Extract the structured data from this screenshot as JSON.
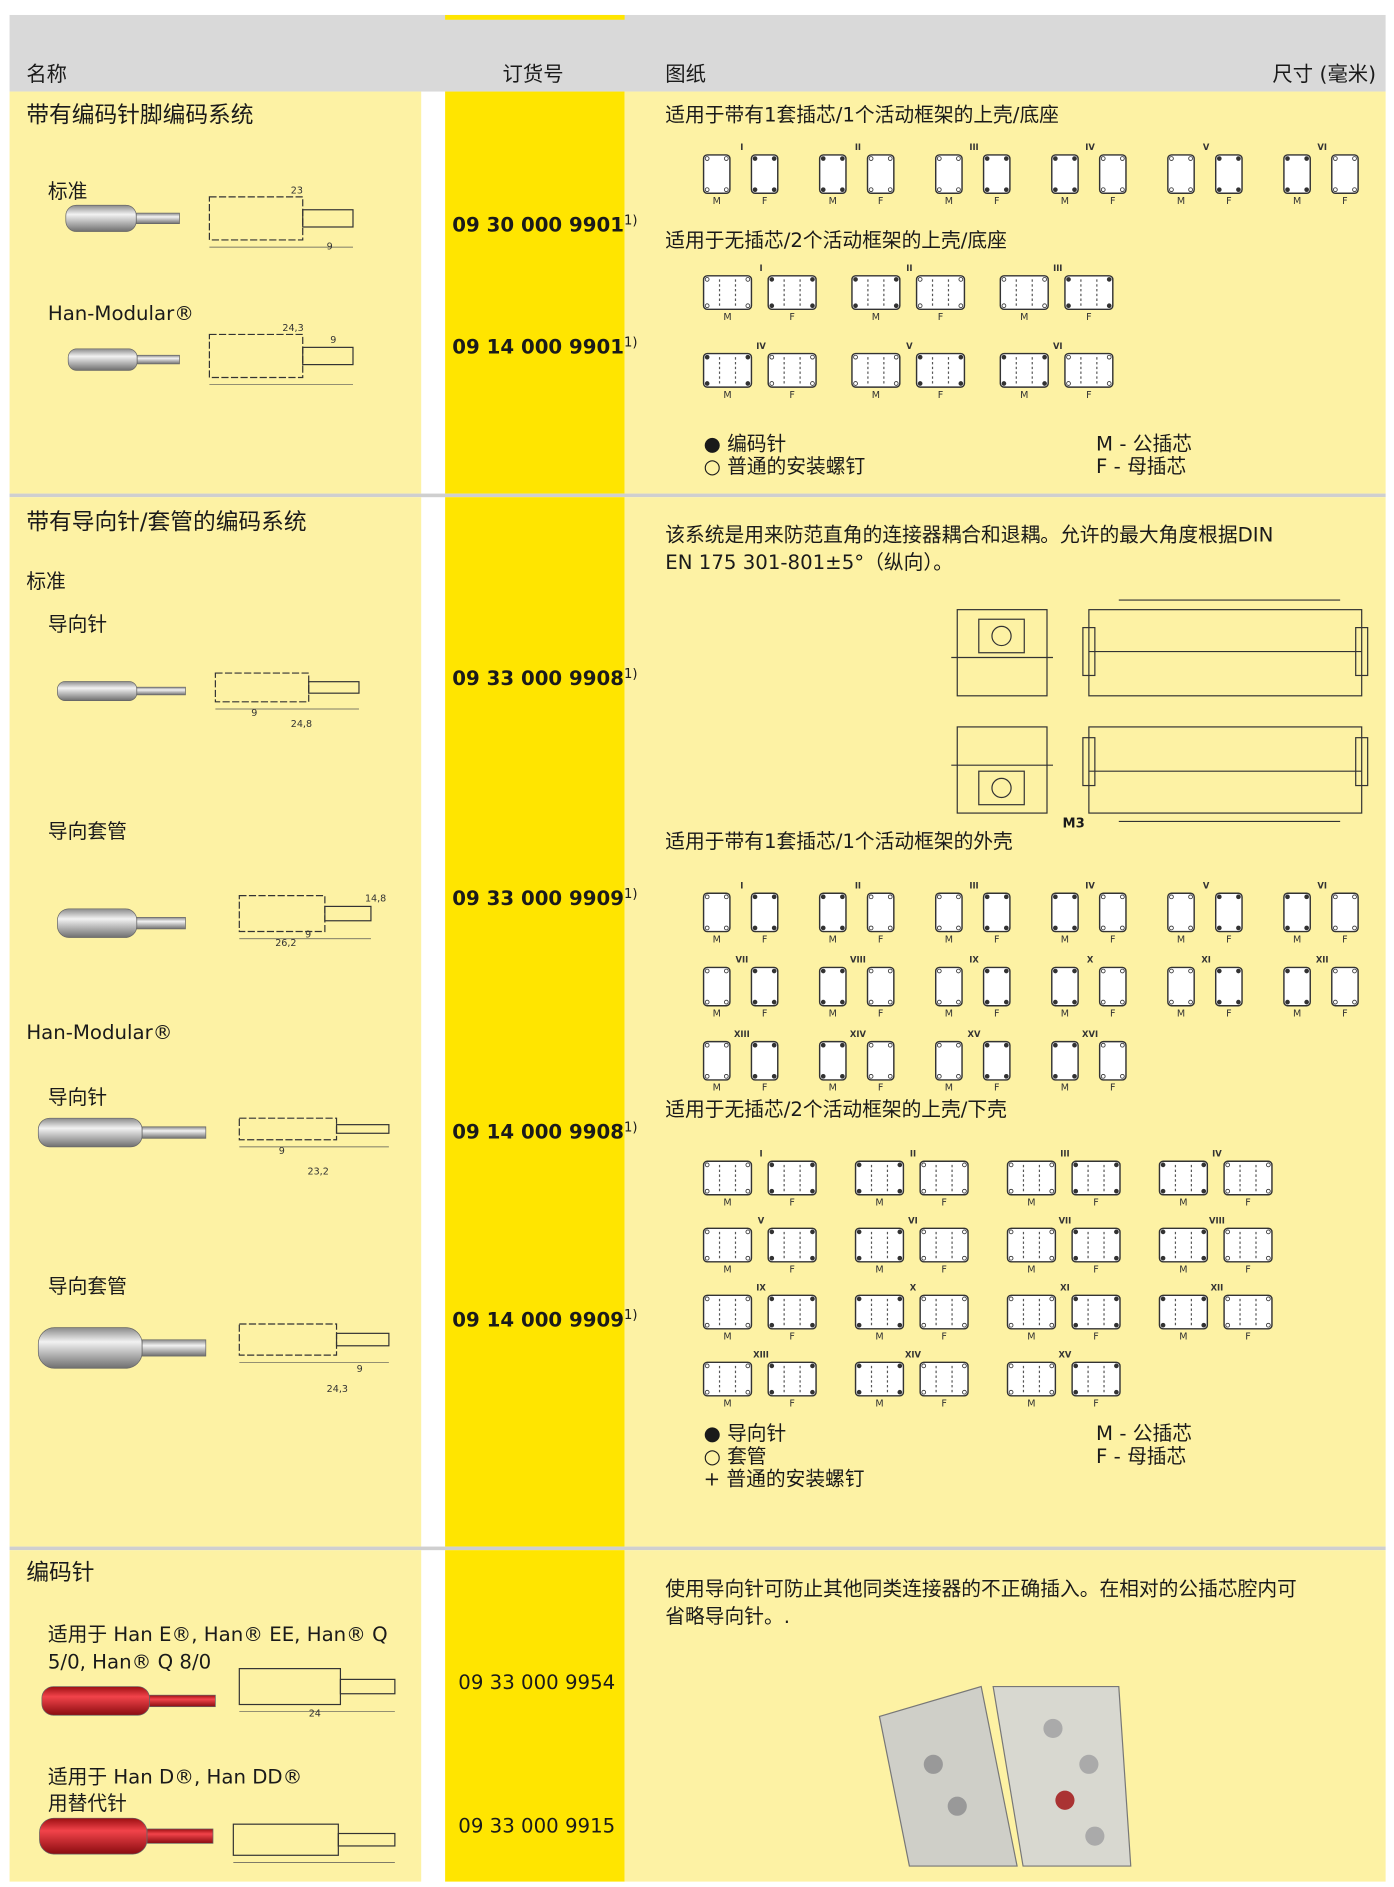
{
  "header": {
    "columns": [
      "名称",
      "订货号",
      "图纸",
      "尺寸 (毫米)"
    ]
  },
  "diagram_labels": {
    "male": "M",
    "female": "F",
    "numerals": [
      "I",
      "II",
      "III",
      "IV",
      "V",
      "VI",
      "VII",
      "VIII",
      "IX",
      "X",
      "XI",
      "XII",
      "XIII",
      "XIV",
      "XV",
      "XVI"
    ]
  },
  "sections": [
    {
      "title": "带有编码针脚编码系统",
      "items": [
        {
          "label": "标准",
          "order": "09 30 000 9901",
          "note": "1)",
          "dims": [
            "23",
            "9"
          ]
        },
        {
          "label": "Han-Modular®",
          "order": "09 14 000 9901",
          "note": "1)",
          "dims": [
            "24,3",
            "9"
          ]
        }
      ],
      "drawing_texts": [
        "适用于带有1套插芯/1个活动框架的上壳/底座",
        "适用于无插芯/2个活动框架的上壳/底座"
      ],
      "legend": [
        "● 编码针",
        "○ 普通的安装螺钉"
      ],
      "legend_key": [
        "M - 公插芯",
        "F - 母插芯"
      ]
    },
    {
      "title": "带有导向针/套管的编码系统",
      "groups": [
        "标准",
        "Han-Modular®"
      ],
      "items": [
        {
          "label": "导向针",
          "order": "09 33 000 9908",
          "note": "1)",
          "dims": [
            "24,8",
            "9"
          ]
        },
        {
          "label": "导向套管",
          "order": "09 33 000 9909",
          "note": "1)",
          "dims": [
            "26,2",
            "9",
            "14,8"
          ]
        },
        {
          "label": "导向针",
          "order": "09 14 000 9908",
          "note": "1)",
          "dims": [
            "23,2",
            "9"
          ]
        },
        {
          "label": "导向套管",
          "order": "09 14 000 9909",
          "note": "1)",
          "dims": [
            "24,3",
            "9"
          ]
        }
      ],
      "description": [
        "该系统是用来防范直角的连接器耦合和退耦。允许的最大角度根据DIN",
        "EN 175 301-801±5°（纵向）。"
      ],
      "figure_label": "M3",
      "drawing_texts": [
        "适用于带有1套插芯/1个活动框架的外壳",
        "适用于无插芯/2个活动框架的上壳/下壳"
      ],
      "legend": [
        "● 导向针",
        "○ 套管",
        "+ 普通的安装螺钉"
      ],
      "legend_key": [
        "M - 公插芯",
        "F - 母插芯"
      ]
    },
    {
      "title": "编码针",
      "items": [
        {
          "label": [
            "适用于 Han E®, Han® EE, Han® Q",
            "5/0, Han® Q 8/0"
          ],
          "order": "09 33 000 9954",
          "dims": [
            "24"
          ]
        },
        {
          "label": [
            "适用于 Han D®, Han DD®",
            "用替代针"
          ],
          "order": "09 33 000 9915"
        }
      ],
      "description": [
        "使用导向针可防止其他同类连接器的不正确插入。在相对的公插芯腔内可",
        "省略导向针。."
      ]
    }
  ]
}
